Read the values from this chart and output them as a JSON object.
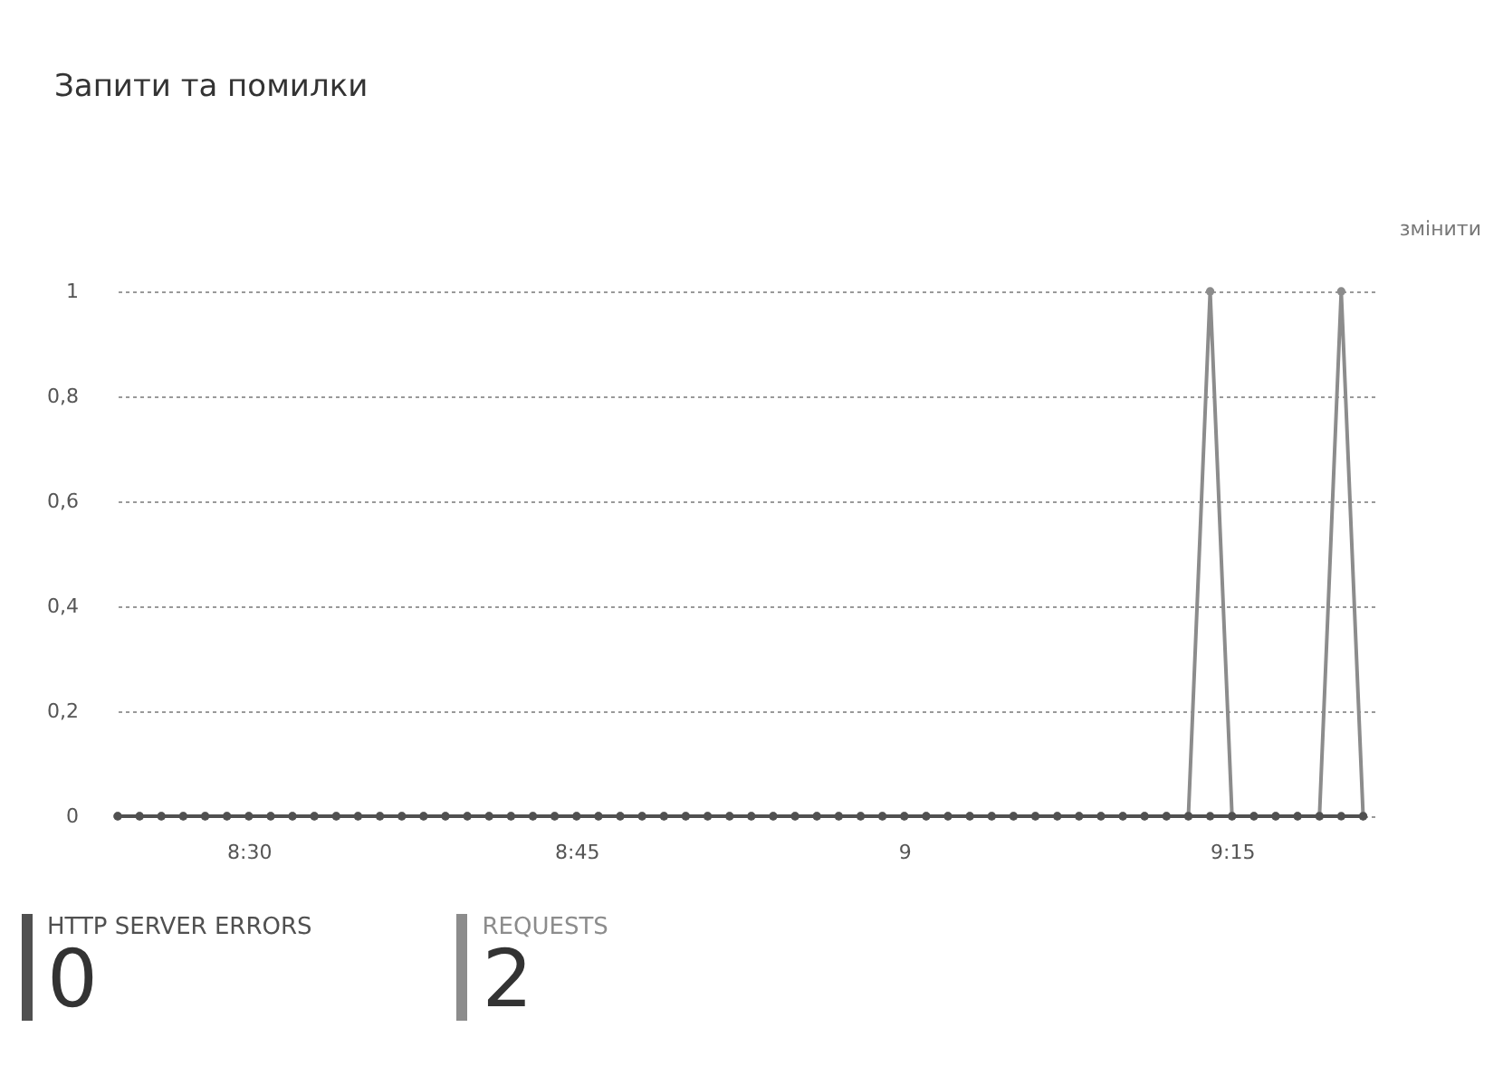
{
  "chart_data": {
    "type": "line",
    "title": "Запити та помилки",
    "x": [
      8.4,
      8.4167,
      8.4333,
      8.45,
      8.4667,
      8.4833,
      8.5,
      8.5167,
      8.5333,
      8.55,
      8.5667,
      8.5833,
      8.6,
      8.6167,
      8.6333,
      8.65,
      8.6667,
      8.6833,
      8.7,
      8.7167,
      8.7333,
      8.75,
      8.7667,
      8.7833,
      8.8,
      8.8167,
      8.8333,
      8.85,
      8.8667,
      8.8833,
      8.9,
      8.9167,
      8.9333,
      8.95,
      8.9667,
      8.9833,
      9,
      9.0167,
      9.0333,
      9.05,
      9.0667,
      9.0833,
      9.1,
      9.1167,
      9.1333,
      9.15,
      9.1667,
      9.1833,
      9.2,
      9.2167,
      9.2333,
      9.25,
      9.2667,
      9.2833,
      9.3,
      9.3167,
      9.3333,
      9.35
    ],
    "series": [
      {
        "name": "REQUESTS",
        "color": "#8c8c8c",
        "values": [
          0,
          0,
          0,
          0,
          0,
          0,
          0,
          0,
          0,
          0,
          0,
          0,
          0,
          0,
          0,
          0,
          0,
          0,
          0,
          0,
          0,
          0,
          0,
          0,
          0,
          0,
          0,
          0,
          0,
          0,
          0,
          0,
          0,
          0,
          0,
          0,
          0,
          0,
          0,
          0,
          0,
          0,
          0,
          0,
          0,
          0,
          0,
          0,
          0,
          0,
          1,
          0,
          0,
          0,
          0,
          0,
          1,
          0
        ]
      },
      {
        "name": "HTTP SERVER ERRORS",
        "color": "#505050",
        "values": [
          0,
          0,
          0,
          0,
          0,
          0,
          0,
          0,
          0,
          0,
          0,
          0,
          0,
          0,
          0,
          0,
          0,
          0,
          0,
          0,
          0,
          0,
          0,
          0,
          0,
          0,
          0,
          0,
          0,
          0,
          0,
          0,
          0,
          0,
          0,
          0,
          0,
          0,
          0,
          0,
          0,
          0,
          0,
          0,
          0,
          0,
          0,
          0,
          0,
          0,
          0,
          0,
          0,
          0,
          0,
          0,
          0,
          0
        ]
      }
    ],
    "xlim": [
      8.4,
      9.36
    ],
    "xticks": [
      {
        "value": 8.5,
        "label": "8:30"
      },
      {
        "value": 8.75,
        "label": "8:45"
      },
      {
        "value": 9,
        "label": "9"
      },
      {
        "value": 9.25,
        "label": "9:15"
      }
    ],
    "ylim": [
      0,
      1
    ],
    "yticks": [
      {
        "value": 0,
        "label": "0"
      },
      {
        "value": 0.2,
        "label": "0,2"
      },
      {
        "value": 0.4,
        "label": "0,4"
      },
      {
        "value": 0.6,
        "label": "0,6"
      },
      {
        "value": 0.8,
        "label": "0,8"
      },
      {
        "value": 1,
        "label": "1"
      }
    ],
    "grid": "y",
    "marker": "circle",
    "line_style": "solid",
    "legend": "bottom left",
    "annotations": [
      "змінити",
      "2",
      "0"
    ]
  }
}
